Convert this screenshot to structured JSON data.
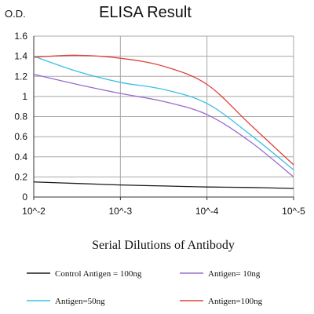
{
  "chart_data": {
    "type": "line",
    "title": "ELISA Result",
    "ylabel": "O.D.",
    "xlabel": "Serial Dilutions of Antibody",
    "x_categories": [
      "10^-2",
      "10^-3",
      "10^-4",
      "10^-5"
    ],
    "x": [
      0,
      0.5,
      1,
      1.5,
      2,
      2.5,
      3
    ],
    "ylim": [
      0,
      1.6
    ],
    "yticks": [
      "0",
      "0.2",
      "0.4",
      "0.6",
      "0.8",
      "1",
      "1.2",
      "1.4",
      "1.6"
    ],
    "grid": true,
    "legend_position": "bottom",
    "series": [
      {
        "name": "Control Antigen = 100ng",
        "color": "#1a1a1a",
        "values": [
          0.15,
          0.135,
          0.12,
          0.11,
          0.1,
          0.095,
          0.085
        ]
      },
      {
        "name": "Antigen= 10ng",
        "color": "#9b6ad0",
        "values": [
          1.22,
          1.12,
          1.03,
          0.95,
          0.82,
          0.55,
          0.2
        ]
      },
      {
        "name": "Antigen=50ng",
        "color": "#39c0e6",
        "values": [
          1.4,
          1.25,
          1.14,
          1.07,
          0.93,
          0.62,
          0.27
        ]
      },
      {
        "name": "Antigen=100ng",
        "color": "#e0413b",
        "values": [
          1.39,
          1.41,
          1.38,
          1.3,
          1.12,
          0.72,
          0.32
        ]
      }
    ]
  }
}
